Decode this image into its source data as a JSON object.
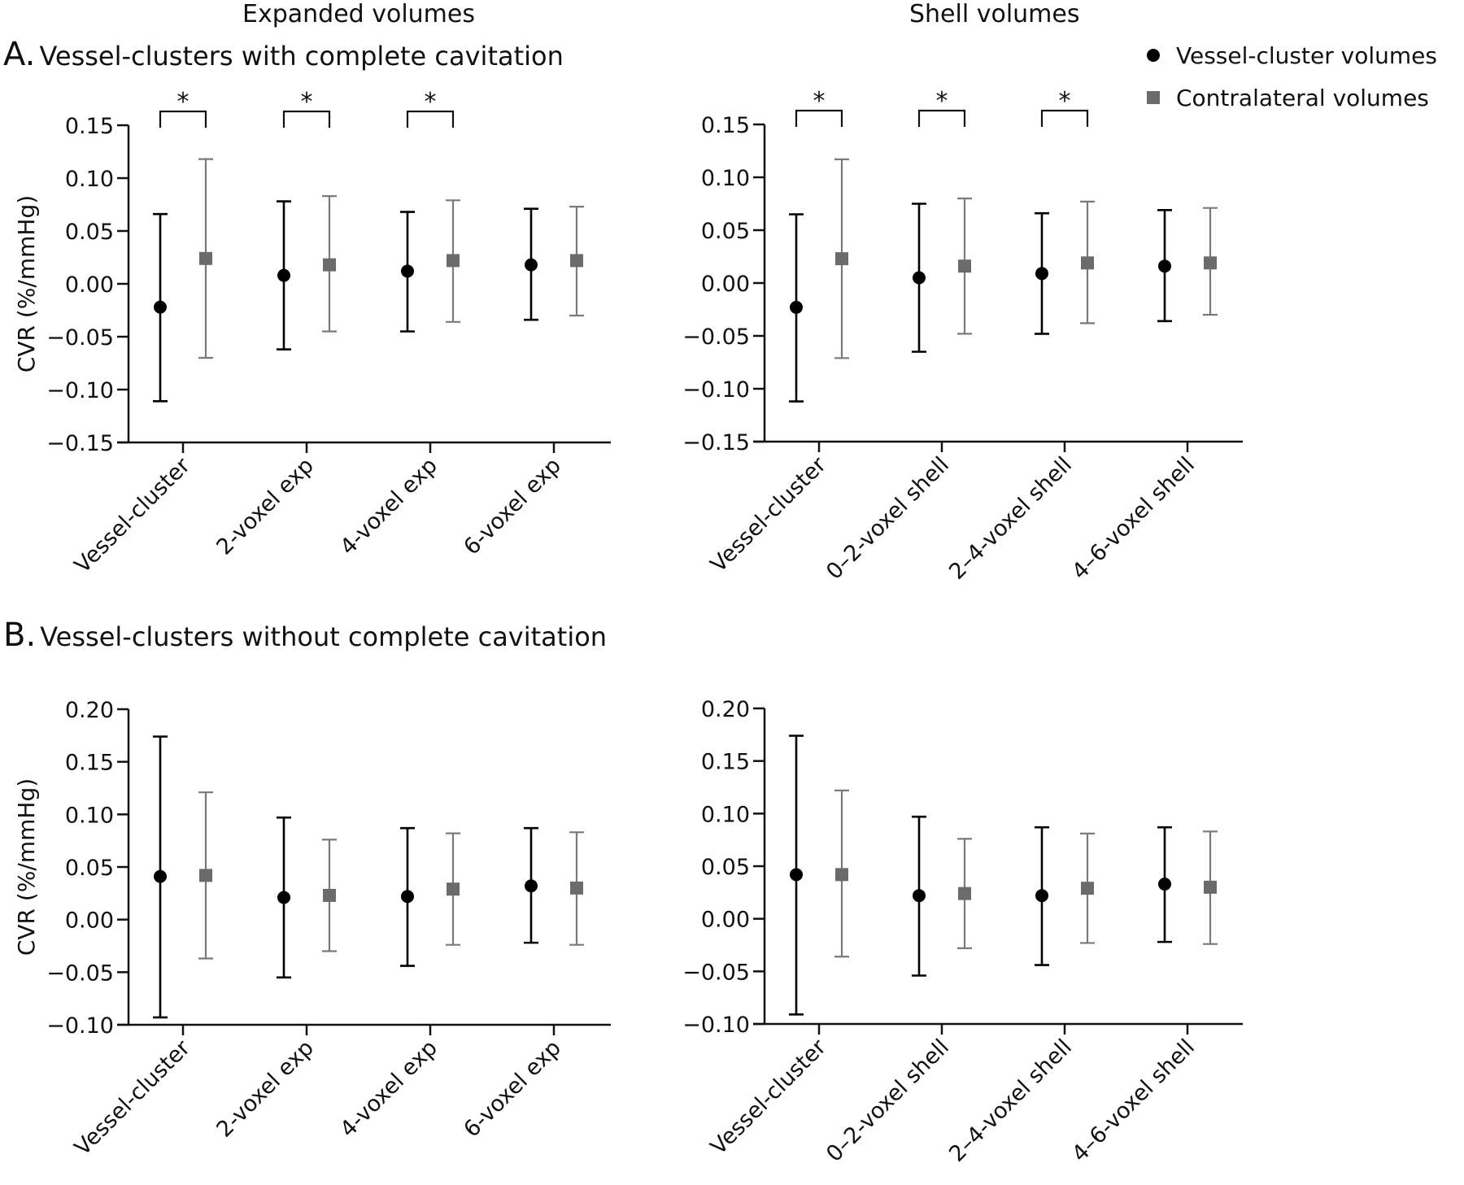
{
  "column_titles": {
    "left": "Expanded volumes",
    "right": "Shell volumes"
  },
  "panels": {
    "A": {
      "letter": "A.",
      "title": "Vessel-clusters with complete cavitation"
    },
    "B": {
      "letter": "B.",
      "title": "Vessel-clusters without complete cavitation"
    }
  },
  "legend": {
    "items": [
      {
        "label": "Vessel-cluster volumes",
        "marker": "circle",
        "color": "#000000"
      },
      {
        "label": "Contralateral volumes",
        "marker": "square",
        "color": "#6b6b6b"
      }
    ]
  },
  "colors": {
    "vessel": "#000000",
    "contralateral": "#6b6b6b",
    "contralateral_errorbar": "#7a7a7a",
    "axis": "#111111"
  },
  "chart_data": [
    {
      "id": "A-expanded",
      "type": "scatter",
      "title": "Vessel-clusters with complete cavitation — Expanded volumes",
      "ylabel": "CVR (%/mmHg)",
      "xlabel": "",
      "ylim": [
        -0.15,
        0.15
      ],
      "yticks": [
        0.15,
        0.1,
        0.05,
        0.0,
        -0.05,
        -0.1,
        -0.15
      ],
      "ytick_labels": [
        "0.15",
        "0.10",
        "0.05",
        "0.00",
        "−0.05",
        "−0.10",
        "−0.15"
      ],
      "categories": [
        "Vessel-cluster",
        "2-voxel exp",
        "4-voxel exp",
        "6-voxel exp"
      ],
      "significance": [
        "*",
        "*",
        "*",
        ""
      ],
      "series": [
        {
          "name": "Vessel-cluster volumes",
          "marker": "circle",
          "values": [
            -0.022,
            0.008,
            0.012,
            0.018
          ],
          "upper": [
            0.066,
            0.078,
            0.068,
            0.071
          ],
          "lower": [
            -0.111,
            -0.062,
            -0.045,
            -0.034
          ]
        },
        {
          "name": "Contralateral volumes",
          "marker": "square",
          "values": [
            0.024,
            0.018,
            0.022,
            0.022
          ],
          "upper": [
            0.118,
            0.083,
            0.079,
            0.073
          ],
          "lower": [
            -0.07,
            -0.045,
            -0.036,
            -0.03
          ]
        }
      ],
      "grid": false
    },
    {
      "id": "A-shell",
      "type": "scatter",
      "title": "Vessel-clusters with complete cavitation — Shell volumes",
      "ylabel": "",
      "xlabel": "",
      "ylim": [
        -0.15,
        0.15
      ],
      "yticks": [
        0.15,
        0.1,
        0.05,
        0.0,
        -0.05,
        -0.1,
        -0.15
      ],
      "ytick_labels": [
        "0.15",
        "0.10",
        "0.05",
        "0.00",
        "−0.05",
        "−0.10",
        "−0.15"
      ],
      "categories": [
        "Vessel-cluster",
        "0–2-voxel shell",
        "2–4-voxel shell",
        "4–6-voxel shell"
      ],
      "significance": [
        "*",
        "*",
        "*",
        ""
      ],
      "series": [
        {
          "name": "Vessel-cluster volumes",
          "marker": "circle",
          "values": [
            -0.023,
            0.005,
            0.009,
            0.016
          ],
          "upper": [
            0.065,
            0.075,
            0.066,
            0.069
          ],
          "lower": [
            -0.112,
            -0.065,
            -0.048,
            -0.036
          ]
        },
        {
          "name": "Contralateral volumes",
          "marker": "square",
          "values": [
            0.023,
            0.016,
            0.019,
            0.019
          ],
          "upper": [
            0.117,
            0.08,
            0.077,
            0.071
          ],
          "lower": [
            -0.071,
            -0.048,
            -0.038,
            -0.03
          ]
        }
      ],
      "grid": false
    },
    {
      "id": "B-expanded",
      "type": "scatter",
      "title": "Vessel-clusters without complete cavitation — Expanded volumes",
      "ylabel": "CVR (%/mmHg)",
      "xlabel": "",
      "ylim": [
        -0.1,
        0.2
      ],
      "yticks": [
        0.2,
        0.15,
        0.1,
        0.05,
        0.0,
        -0.05,
        -0.1
      ],
      "ytick_labels": [
        "0.20",
        "0.15",
        "0.10",
        "0.05",
        "0.00",
        "−0.05",
        "−0.10"
      ],
      "categories": [
        "Vessel-cluster",
        "2-voxel exp",
        "4-voxel exp",
        "6-voxel exp"
      ],
      "significance": [
        "",
        "",
        "",
        ""
      ],
      "series": [
        {
          "name": "Vessel-cluster volumes",
          "marker": "circle",
          "values": [
            0.041,
            0.021,
            0.022,
            0.032
          ],
          "upper": [
            0.174,
            0.097,
            0.087,
            0.087
          ],
          "lower": [
            -0.093,
            -0.055,
            -0.044,
            -0.022
          ]
        },
        {
          "name": "Contralateral volumes",
          "marker": "square",
          "values": [
            0.042,
            0.023,
            0.029,
            0.03
          ],
          "upper": [
            0.121,
            0.076,
            0.082,
            0.083
          ],
          "lower": [
            -0.037,
            -0.03,
            -0.024,
            -0.024
          ]
        }
      ],
      "grid": false
    },
    {
      "id": "B-shell",
      "type": "scatter",
      "title": "Vessel-clusters without complete cavitation — Shell volumes",
      "ylabel": "",
      "xlabel": "",
      "ylim": [
        -0.1,
        0.2
      ],
      "yticks": [
        0.2,
        0.15,
        0.1,
        0.05,
        0.0,
        -0.05,
        -0.1
      ],
      "ytick_labels": [
        "0.20",
        "0.15",
        "0.10",
        "0.05",
        "0.00",
        "−0.05",
        "−0.10"
      ],
      "categories": [
        "Vessel-cluster",
        "0–2-voxel shell",
        "2–4-voxel shell",
        "4–6-voxel shell"
      ],
      "significance": [
        "",
        "",
        "",
        ""
      ],
      "series": [
        {
          "name": "Vessel-cluster volumes",
          "marker": "circle",
          "values": [
            0.042,
            0.022,
            0.022,
            0.033
          ],
          "upper": [
            0.174,
            0.097,
            0.087,
            0.087
          ],
          "lower": [
            -0.091,
            -0.054,
            -0.044,
            -0.022
          ]
        },
        {
          "name": "Contralateral volumes",
          "marker": "square",
          "values": [
            0.042,
            0.024,
            0.029,
            0.03
          ],
          "upper": [
            0.122,
            0.076,
            0.081,
            0.083
          ],
          "lower": [
            -0.036,
            -0.028,
            -0.023,
            -0.024
          ]
        }
      ],
      "grid": false
    }
  ]
}
